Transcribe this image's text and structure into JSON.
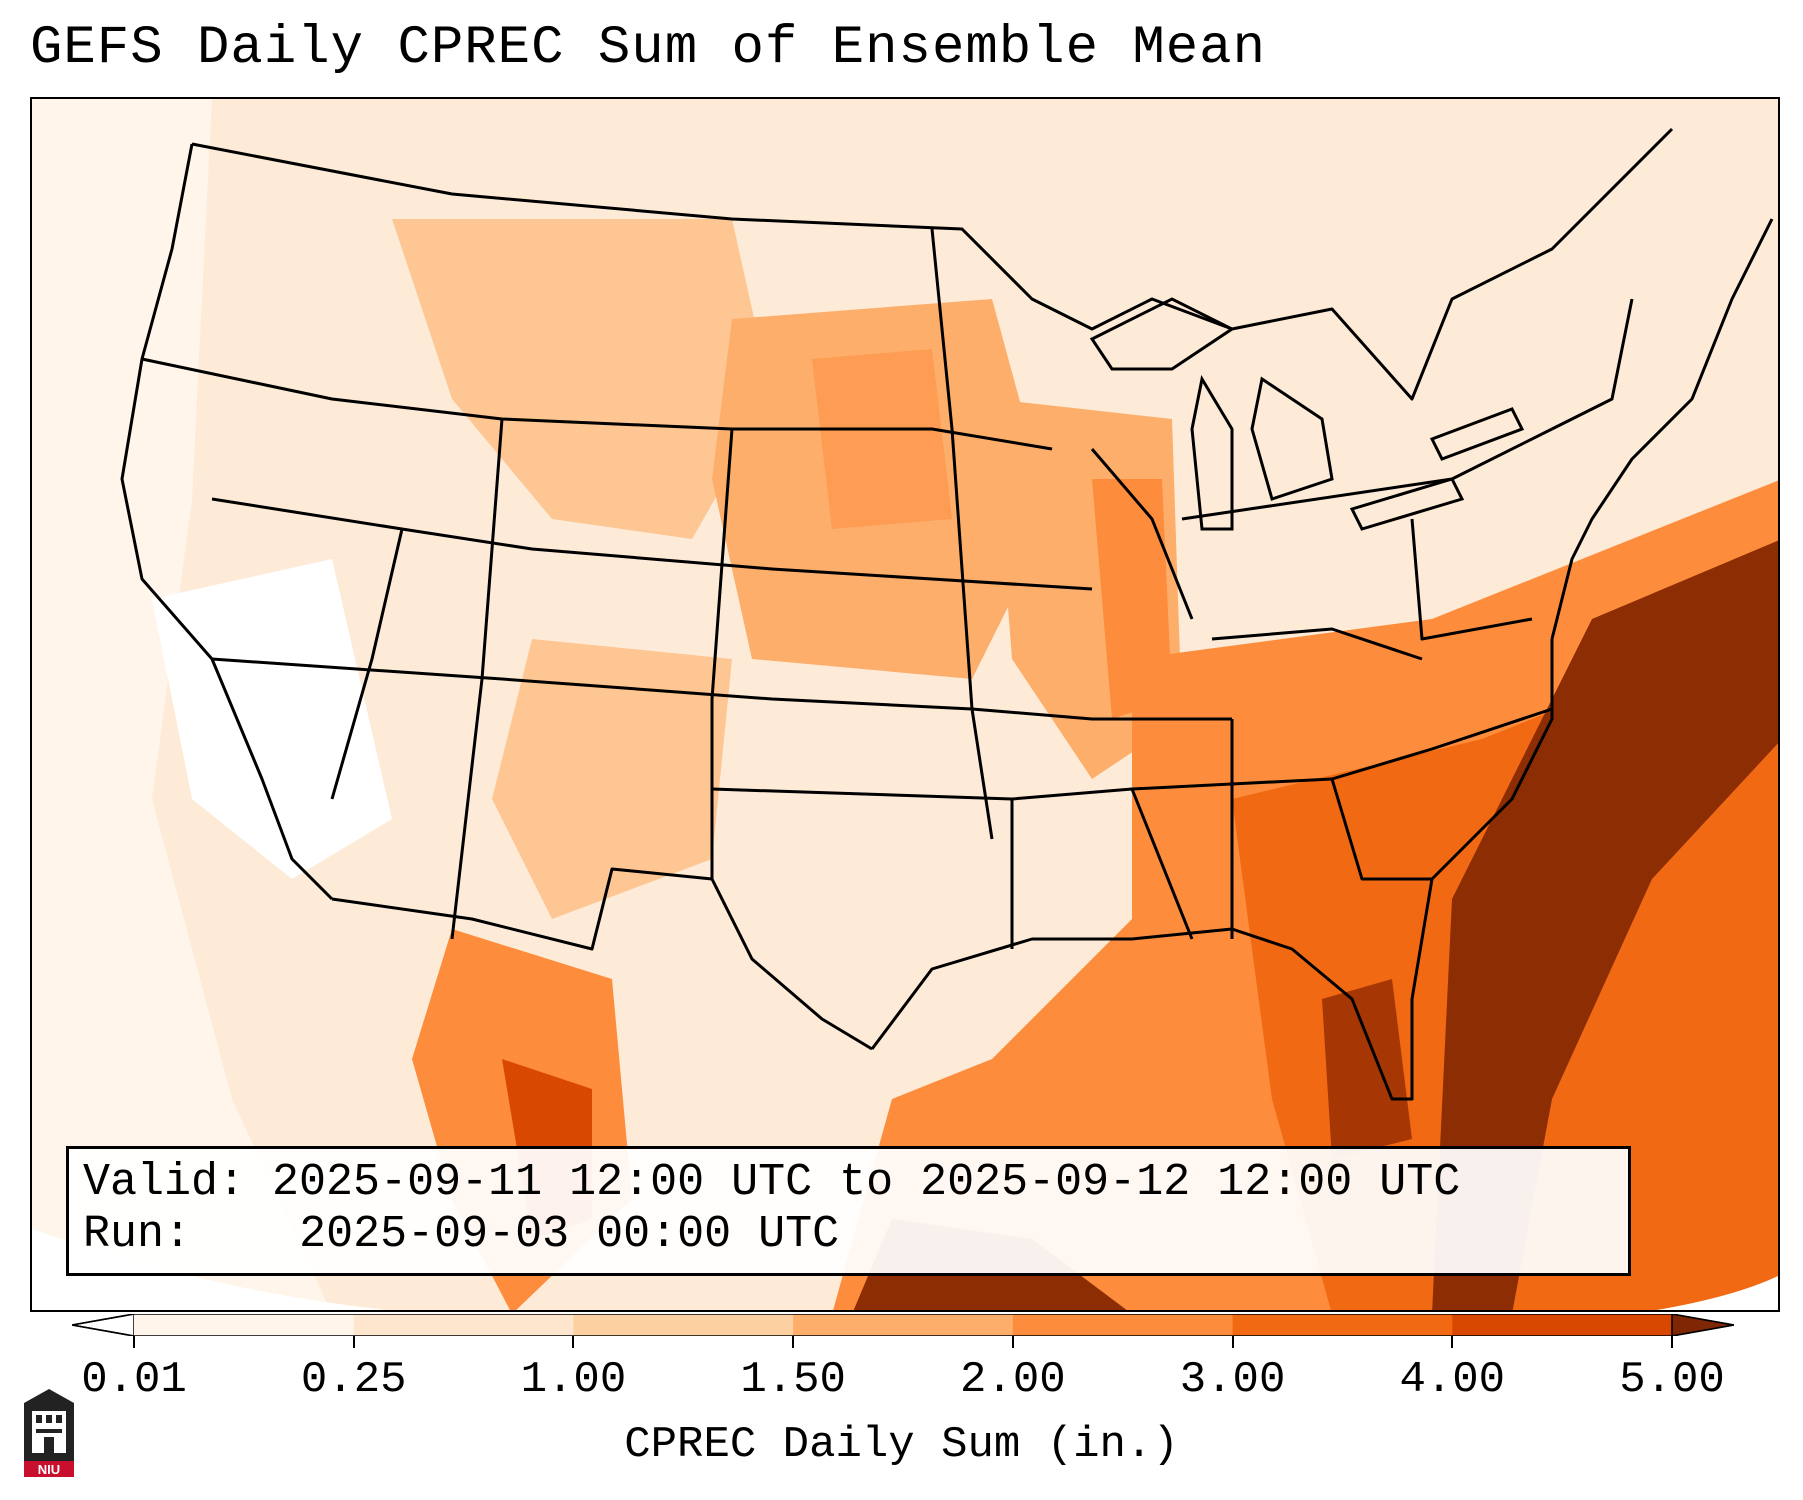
{
  "title": "GEFS Daily CPREC Sum of Ensemble Mean",
  "info": {
    "valid_label": "Valid:",
    "valid_value": "2025-09-11 12:00 UTC to 2025-09-12 12:00 UTC",
    "run_label": "Run:",
    "run_value": "2025-09-03 00:00 UTC"
  },
  "colorbar": {
    "label": "CPREC Daily Sum (in.)",
    "ticks": [
      "0.01",
      "0.25",
      "1.00",
      "1.50",
      "2.00",
      "3.00",
      "4.00",
      "5.00"
    ],
    "colors": [
      "#fff5eb",
      "#fee6ce",
      "#fdd0a2",
      "#fdae6b",
      "#fd8d3c",
      "#f16913",
      "#d94801",
      "#8c2d04"
    ],
    "under_color": "#ffffff",
    "over_color": "#7f2704",
    "extend": "both"
  },
  "logo": {
    "text": "NIU",
    "accent_color": "#c8102e"
  },
  "map": {
    "projection": "lambert-conformal",
    "region": "Contiguous United States",
    "overlays": [
      "state-borders",
      "coastlines",
      "great-lakes"
    ]
  }
}
